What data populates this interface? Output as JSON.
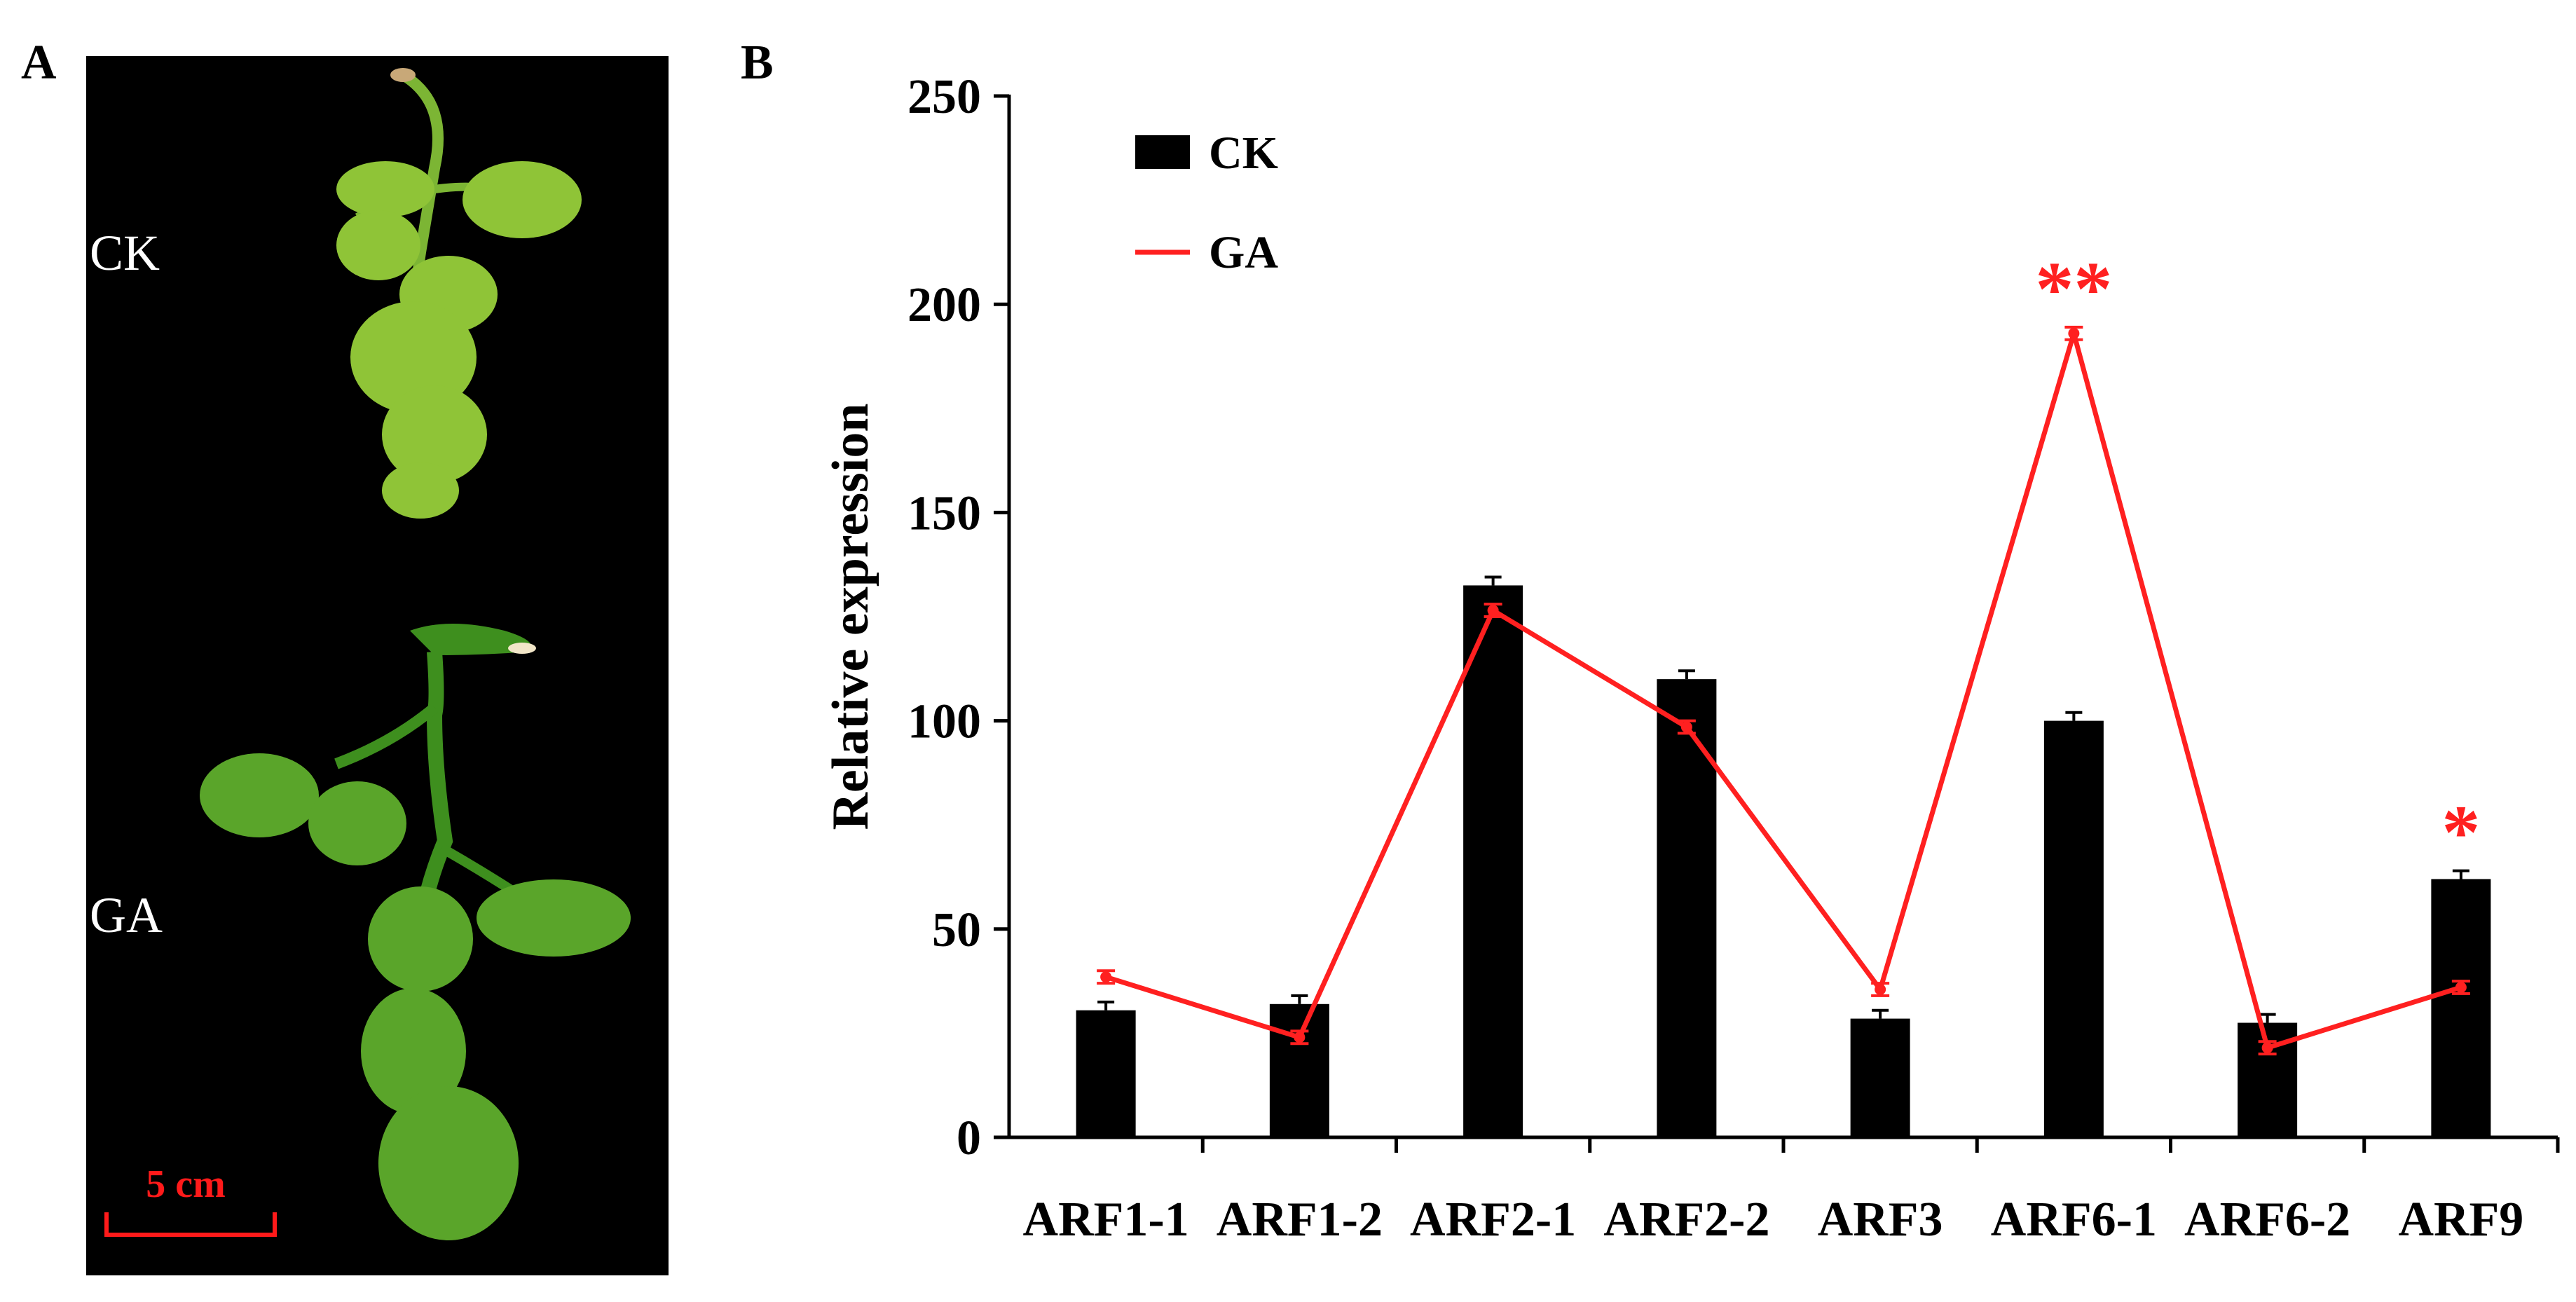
{
  "panels": {
    "a": {
      "letter": "A",
      "labels": {
        "ck": "CK",
        "ga": "GA"
      },
      "scale_bar_text": "5 cm",
      "scale_color": "#ff1a1a",
      "background": "#000000",
      "plant_color": "#8fc437",
      "plant_color_ga": "#5aa52a"
    },
    "b": {
      "letter": "B"
    }
  },
  "chart_data": {
    "type": "bar",
    "title": "",
    "xlabel": "",
    "ylabel": "Relative expression",
    "ylim": [
      0,
      250
    ],
    "yticks": [
      "0",
      "50",
      "100",
      "150",
      "200",
      "250"
    ],
    "categories": [
      "ARF1-1",
      "ARF1-2",
      "ARF2-1",
      "ARF2-2",
      "ARF3",
      "ARF6-1",
      "ARF6-2",
      "ARF9"
    ],
    "series": [
      {
        "name": "CK",
        "type": "bar",
        "color": "#000000",
        "values": [
          30.5,
          32,
          132.5,
          110,
          28.5,
          100,
          27.5,
          62
        ],
        "errors": [
          2,
          2,
          2,
          2,
          2,
          2,
          2,
          2
        ]
      },
      {
        "name": "GA",
        "type": "line",
        "color": "#ff2020",
        "values": [
          38.5,
          24,
          126.5,
          98.5,
          35.5,
          193,
          21.5,
          36
        ],
        "errors": [
          1.5,
          1.5,
          1.5,
          1.5,
          1.5,
          1.5,
          1.5,
          1.5
        ]
      }
    ],
    "legend": {
      "position": "top-left",
      "entries": [
        "CK",
        "GA"
      ]
    },
    "annotations": [
      {
        "category": "ARF6-1",
        "text": "**",
        "color": "#ff2020"
      },
      {
        "category": "ARF9",
        "text": "*",
        "color": "#ff2020"
      }
    ]
  }
}
